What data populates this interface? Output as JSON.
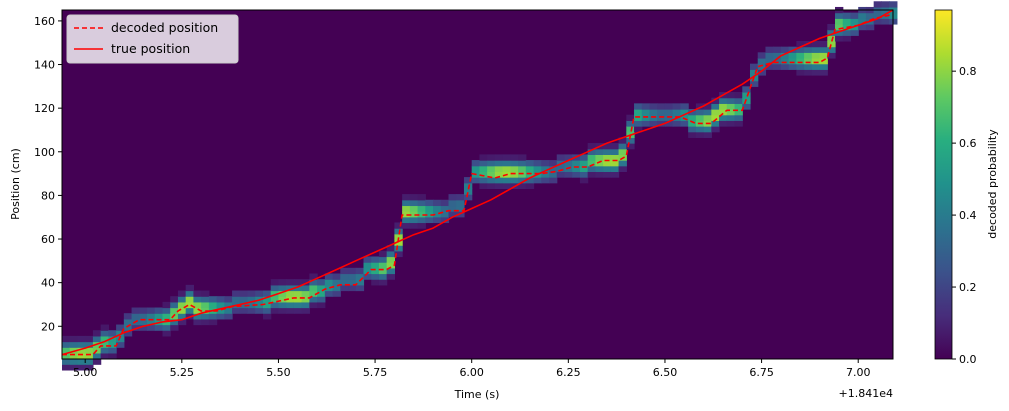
{
  "chart_data": {
    "type": "heatmap",
    "xlabel": "Time (s)",
    "ylabel": "Position (cm)",
    "x_offset_label": "+1.841e4",
    "xlim": [
      4.94,
      7.09
    ],
    "ylim": [
      5,
      165
    ],
    "x_ticks": [
      5.0,
      5.25,
      5.5,
      5.75,
      6.0,
      6.25,
      6.5,
      6.75,
      7.0
    ],
    "x_tick_labels": [
      "5.00",
      "5.25",
      "5.50",
      "5.75",
      "6.00",
      "6.25",
      "6.50",
      "6.75",
      "7.00"
    ],
    "y_ticks": [
      20,
      40,
      60,
      80,
      100,
      120,
      140,
      160
    ],
    "y_tick_labels": [
      "20",
      "40",
      "60",
      "80",
      "100",
      "120",
      "140",
      "160"
    ],
    "colorbar": {
      "label": "decoded probability",
      "range": [
        0.0,
        0.97
      ],
      "ticks": [
        0.0,
        0.2,
        0.4,
        0.6,
        0.8
      ],
      "tick_labels": [
        "0.0",
        "0.2",
        "0.4",
        "0.6",
        "0.8"
      ],
      "colormap": "viridis"
    },
    "legend": {
      "placement": "top-left",
      "entries": [
        {
          "label": "decoded position",
          "style": "dashed",
          "color": "#ff0000"
        },
        {
          "label": "true position",
          "style": "solid",
          "color": "#ff0000"
        }
      ]
    },
    "series": [
      {
        "name": "decoded position",
        "x": [
          4.94,
          5.02,
          5.04,
          5.08,
          5.1,
          5.14,
          5.22,
          5.24,
          5.27,
          5.3,
          5.34,
          5.38,
          5.46,
          5.54,
          5.58,
          5.62,
          5.66,
          5.7,
          5.74,
          5.78,
          5.8,
          5.82,
          5.86,
          5.9,
          5.94,
          5.98,
          6.0,
          6.06,
          6.1,
          6.14,
          6.18,
          6.22,
          6.26,
          6.3,
          6.34,
          6.38,
          6.4,
          6.42,
          6.46,
          6.5,
          6.54,
          6.58,
          6.62,
          6.66,
          6.7,
          6.74,
          6.78,
          6.82,
          6.86,
          6.9,
          6.92,
          6.94,
          7.0,
          7.04,
          7.09
        ],
        "y": [
          7,
          7,
          11,
          11,
          19,
          23,
          23,
          27,
          30,
          27,
          27,
          29,
          30,
          33,
          33,
          37,
          39,
          39,
          46,
          46,
          48,
          71,
          71,
          71,
          73,
          73,
          90,
          88,
          90,
          90,
          90,
          91,
          93,
          93,
          96,
          96,
          98,
          116,
          116,
          116,
          116,
          113,
          113,
          119,
          119,
          139,
          141,
          141,
          141,
          141,
          143,
          156,
          158,
          161,
          163
        ]
      },
      {
        "name": "true position",
        "x": [
          4.94,
          5.0,
          5.05,
          5.1,
          5.15,
          5.2,
          5.25,
          5.3,
          5.35,
          5.4,
          5.45,
          5.5,
          5.55,
          5.6,
          5.65,
          5.7,
          5.75,
          5.8,
          5.85,
          5.9,
          5.95,
          6.0,
          6.05,
          6.1,
          6.15,
          6.2,
          6.25,
          6.3,
          6.35,
          6.4,
          6.45,
          6.5,
          6.55,
          6.6,
          6.65,
          6.7,
          6.75,
          6.8,
          6.85,
          6.9,
          6.95,
          7.0,
          7.05,
          7.09
        ],
        "y": [
          7,
          10,
          13,
          17,
          20,
          22,
          23,
          26,
          28,
          30,
          32,
          35,
          38,
          42,
          46,
          50,
          54,
          58,
          62,
          65,
          70,
          74,
          78,
          83,
          88,
          92,
          96,
          100,
          104,
          107,
          110,
          113,
          117,
          121,
          126,
          131,
          137,
          144,
          148,
          152,
          155,
          158,
          161,
          165
        ]
      }
    ]
  }
}
